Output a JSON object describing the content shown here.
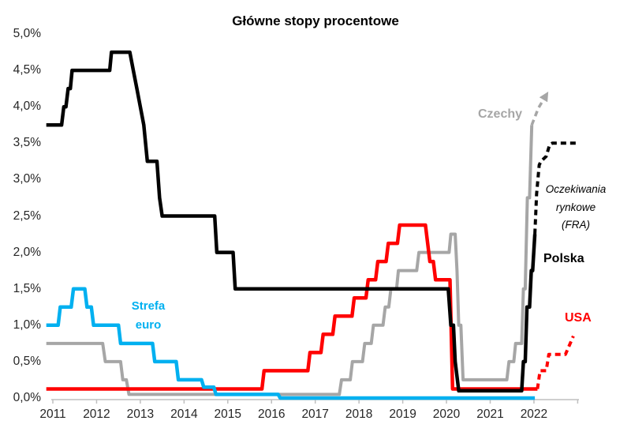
{
  "title": "Główne stopy procentowe",
  "annotations": {
    "czechy": "Czechy",
    "strefa_line1": "Strefa",
    "strefa_line2": "euro",
    "fra_line1": "Oczekiwania",
    "fra_line2": "rynkowe",
    "fra_line3": "(FRA)",
    "polska": "Polska",
    "usa": "USA"
  },
  "colors": {
    "polska": "#000000",
    "czechy": "#A6A6A6",
    "strefa_euro": "#00B0F0",
    "usa": "#FF0000",
    "axis": "#BFBFBF",
    "text": "#262626"
  },
  "chart_data": {
    "type": "line",
    "title": "Główne stopy procentowe",
    "xlabel": "",
    "ylabel": "",
    "grid": false,
    "legend_position": "inline-labels",
    "x_range": [
      2010.8,
      2023.05
    ],
    "ylim": [
      0.0,
      5.0
    ],
    "y_tick_step": 0.5,
    "x_ticks": [
      "2011",
      "2012",
      "2013",
      "2014",
      "2015",
      "2016",
      "2017",
      "2018",
      "2019",
      "2020",
      "2021",
      "2022"
    ],
    "y_ticks": [
      "0,0%",
      "0,5%",
      "1,0%",
      "1,5%",
      "2,0%",
      "2,5%",
      "3,0%",
      "3,5%",
      "4,0%",
      "4,5%",
      "5,0%"
    ],
    "unit": "percent",
    "series": [
      {
        "name": "Czechy",
        "color_key": "czechy",
        "style": "solid",
        "width": 4,
        "points": [
          [
            2010.85,
            0.75
          ],
          [
            2012.14,
            0.75
          ],
          [
            2012.2,
            0.5
          ],
          [
            2012.55,
            0.5
          ],
          [
            2012.6,
            0.25
          ],
          [
            2012.68,
            0.25
          ],
          [
            2012.74,
            0.05
          ],
          [
            2017.55,
            0.05
          ],
          [
            2017.6,
            0.25
          ],
          [
            2017.8,
            0.25
          ],
          [
            2017.85,
            0.5
          ],
          [
            2018.08,
            0.5
          ],
          [
            2018.13,
            0.75
          ],
          [
            2018.28,
            0.75
          ],
          [
            2018.33,
            1.0
          ],
          [
            2018.55,
            1.0
          ],
          [
            2018.6,
            1.25
          ],
          [
            2018.68,
            1.25
          ],
          [
            2018.73,
            1.5
          ],
          [
            2018.86,
            1.5
          ],
          [
            2018.9,
            1.75
          ],
          [
            2019.32,
            1.75
          ],
          [
            2019.37,
            2.0
          ],
          [
            2020.06,
            2.0
          ],
          [
            2020.1,
            2.25
          ],
          [
            2020.2,
            2.25
          ],
          [
            2020.24,
            1.75
          ],
          [
            2020.28,
            1.0
          ],
          [
            2020.33,
            1.0
          ],
          [
            2020.38,
            0.25
          ],
          [
            2021.38,
            0.25
          ],
          [
            2021.43,
            0.5
          ],
          [
            2021.54,
            0.5
          ],
          [
            2021.58,
            0.75
          ],
          [
            2021.72,
            0.75
          ],
          [
            2021.76,
            1.5
          ],
          [
            2021.8,
            1.5
          ],
          [
            2021.85,
            2.75
          ],
          [
            2021.9,
            2.75
          ],
          [
            2021.95,
            3.75
          ]
        ]
      },
      {
        "name": "Czechy — oczekiwania rynkowe (FRA)",
        "color_key": "czechy",
        "style": "dashed",
        "width": 3.5,
        "arrow": true,
        "points": [
          [
            2021.95,
            3.75
          ],
          [
            2022.1,
            3.98
          ],
          [
            2022.3,
            4.18
          ]
        ]
      },
      {
        "name": "USA",
        "color_key": "usa",
        "style": "solid",
        "width": 4.5,
        "points": [
          [
            2010.85,
            0.125
          ],
          [
            2015.78,
            0.125
          ],
          [
            2015.83,
            0.375
          ],
          [
            2016.83,
            0.375
          ],
          [
            2016.88,
            0.625
          ],
          [
            2017.13,
            0.625
          ],
          [
            2017.18,
            0.875
          ],
          [
            2017.4,
            0.875
          ],
          [
            2017.45,
            1.125
          ],
          [
            2017.84,
            1.125
          ],
          [
            2017.89,
            1.375
          ],
          [
            2018.16,
            1.375
          ],
          [
            2018.21,
            1.625
          ],
          [
            2018.38,
            1.625
          ],
          [
            2018.43,
            1.875
          ],
          [
            2018.62,
            1.875
          ],
          [
            2018.67,
            2.125
          ],
          [
            2018.88,
            2.125
          ],
          [
            2018.93,
            2.375
          ],
          [
            2019.52,
            2.375
          ],
          [
            2019.57,
            2.125
          ],
          [
            2019.62,
            1.875
          ],
          [
            2019.7,
            1.875
          ],
          [
            2019.75,
            1.625
          ],
          [
            2020.08,
            1.625
          ],
          [
            2020.14,
            0.125
          ],
          [
            2022.08,
            0.125
          ]
        ]
      },
      {
        "name": "USA — oczekiwania rynkowe (FRA)",
        "color_key": "usa",
        "style": "dashed",
        "width": 4,
        "points": [
          [
            2022.08,
            0.125
          ],
          [
            2022.14,
            0.375
          ],
          [
            2022.28,
            0.375
          ],
          [
            2022.34,
            0.6
          ],
          [
            2022.72,
            0.6
          ],
          [
            2022.9,
            0.85
          ]
        ]
      },
      {
        "name": "Strefa euro",
        "color_key": "strefa_euro",
        "style": "solid",
        "width": 4.5,
        "points": [
          [
            2010.85,
            1.0
          ],
          [
            2011.12,
            1.0
          ],
          [
            2011.17,
            1.25
          ],
          [
            2011.42,
            1.25
          ],
          [
            2011.47,
            1.5
          ],
          [
            2011.73,
            1.5
          ],
          [
            2011.78,
            1.25
          ],
          [
            2011.88,
            1.25
          ],
          [
            2011.93,
            1.0
          ],
          [
            2012.5,
            1.0
          ],
          [
            2012.55,
            0.75
          ],
          [
            2013.28,
            0.75
          ],
          [
            2013.33,
            0.5
          ],
          [
            2013.82,
            0.5
          ],
          [
            2013.87,
            0.25
          ],
          [
            2014.4,
            0.25
          ],
          [
            2014.45,
            0.15
          ],
          [
            2014.68,
            0.15
          ],
          [
            2014.73,
            0.05
          ],
          [
            2016.15,
            0.05
          ],
          [
            2016.2,
            0.0
          ],
          [
            2022.02,
            0.0
          ]
        ]
      },
      {
        "name": "Polska",
        "color_key": "polska",
        "style": "solid",
        "width": 4.5,
        "points": [
          [
            2010.85,
            3.75
          ],
          [
            2011.2,
            3.75
          ],
          [
            2011.25,
            4.0
          ],
          [
            2011.3,
            4.0
          ],
          [
            2011.35,
            4.25
          ],
          [
            2011.4,
            4.25
          ],
          [
            2011.44,
            4.5
          ],
          [
            2012.3,
            4.5
          ],
          [
            2012.34,
            4.75
          ],
          [
            2012.76,
            4.75
          ],
          [
            2012.84,
            4.5
          ],
          [
            2012.92,
            4.25
          ],
          [
            2013.0,
            4.0
          ],
          [
            2013.08,
            3.75
          ],
          [
            2013.16,
            3.25
          ],
          [
            2013.38,
            3.25
          ],
          [
            2013.44,
            2.75
          ],
          [
            2013.5,
            2.5
          ],
          [
            2014.7,
            2.5
          ],
          [
            2014.75,
            2.0
          ],
          [
            2015.12,
            2.0
          ],
          [
            2015.17,
            1.5
          ],
          [
            2020.04,
            1.5
          ],
          [
            2020.1,
            1.0
          ],
          [
            2020.16,
            1.0
          ],
          [
            2020.2,
            0.5
          ],
          [
            2020.28,
            0.1
          ],
          [
            2021.72,
            0.1
          ],
          [
            2021.76,
            0.5
          ],
          [
            2021.8,
            0.5
          ],
          [
            2021.84,
            1.25
          ],
          [
            2021.9,
            1.25
          ],
          [
            2021.94,
            1.75
          ],
          [
            2021.97,
            1.75
          ],
          [
            2022.02,
            2.25
          ]
        ]
      },
      {
        "name": "Polska — oczekiwania rynkowe (FRA)",
        "color_key": "polska",
        "style": "dashed",
        "width": 4,
        "points": [
          [
            2022.02,
            2.25
          ],
          [
            2022.06,
            2.8
          ],
          [
            2022.12,
            3.2
          ],
          [
            2022.16,
            3.25
          ],
          [
            2022.28,
            3.32
          ],
          [
            2022.36,
            3.48
          ],
          [
            2022.42,
            3.5
          ],
          [
            2022.97,
            3.5
          ]
        ]
      }
    ]
  }
}
